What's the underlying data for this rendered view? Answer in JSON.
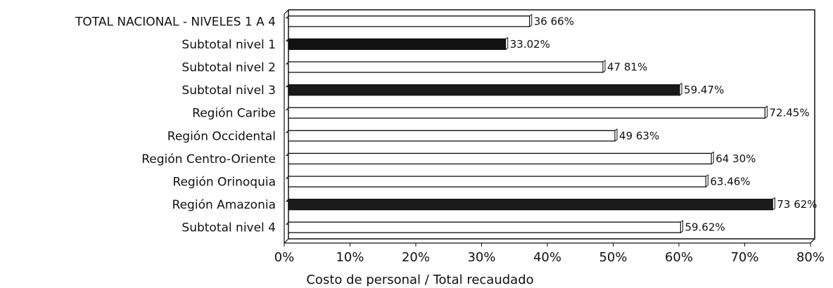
{
  "chart_data": {
    "type": "bar",
    "orientation": "horizontal",
    "categories": [
      "TOTAL NACIONAL - NIVELES 1 A 4",
      "Subtotal nivel 1",
      "Subtotal nivel 2",
      "Subtotal nivel 3",
      "Región Caribe",
      "Región Occidental",
      "Región Centro-Oriente",
      "Región Orinoquia",
      "Región Amazonia",
      "Subtotal nivel 4"
    ],
    "values": [
      36.66,
      33.02,
      47.81,
      59.47,
      72.45,
      49.63,
      64.3,
      63.46,
      73.62,
      59.62
    ],
    "value_labels": [
      "36 66%",
      "33.02%",
      "47 81%",
      "59.47%",
      "72.45%",
      "49 63%",
      "64 30%",
      "63.46%",
      "73 62%",
      "59.62%"
    ],
    "bar_fills": [
      "#ffffff",
      "#111111",
      "#ffffff",
      "#1a1a1a",
      "#ffffff",
      "#ffffff",
      "#ffffff",
      "#ffffff",
      "#1c1c1c",
      "#ffffff"
    ],
    "xlabel": "Costo de personal / Total recaudado",
    "xlim": [
      0,
      80
    ],
    "xticks": [
      0,
      10,
      20,
      30,
      40,
      50,
      60,
      70,
      80
    ],
    "xtick_labels": [
      "0%",
      "10%",
      "20%",
      "30%",
      "40%",
      "50%",
      "60%",
      "70%",
      "80%"
    ],
    "grid": false,
    "legend": "none"
  }
}
